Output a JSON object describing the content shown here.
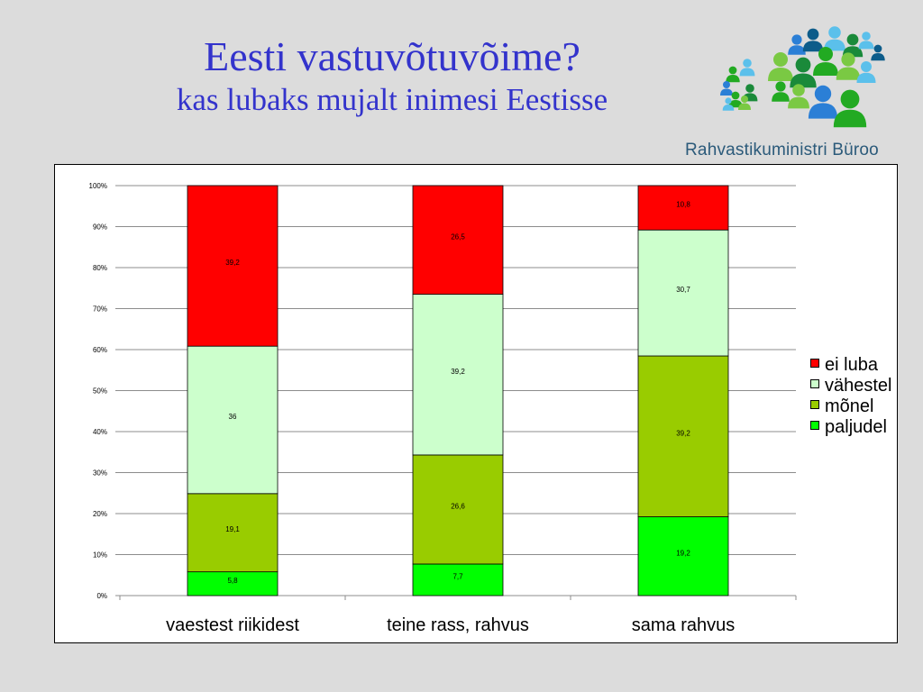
{
  "title": {
    "main": "Eesti vastuvõtuvõime?",
    "sub": "kas lubaks mujalt inimesi Eestisse"
  },
  "logo": {
    "text": "Rahvastikuministri Büroo",
    "colors": [
      "#22aa22",
      "#7ac943",
      "#1a8a3a",
      "#2b7fd6",
      "#5bc0eb",
      "#0d5c8a"
    ]
  },
  "colors": {
    "background": "#dcdcdc",
    "title": "#3333cc",
    "paljudel": "#00ff00",
    "monel": "#99cc00",
    "vahestel": "#ccffcc",
    "ei_luba": "#ff0000"
  },
  "chart_data": {
    "type": "bar",
    "stacked": "percent",
    "categories": [
      "vaestest riikidest",
      "teine rass, rahvus",
      "sama rahvus"
    ],
    "series": [
      {
        "name": "paljudel",
        "color": "#00ff00",
        "values": [
          5.8,
          7.7,
          19.2
        ],
        "labels": [
          "5,8",
          "7,7",
          "19,2"
        ]
      },
      {
        "name": "mõnel",
        "color": "#99cc00",
        "values": [
          19.1,
          26.6,
          39.2
        ],
        "labels": [
          "19,1",
          "26,6",
          "39,2"
        ]
      },
      {
        "name": "vähestel",
        "color": "#ccffcc",
        "values": [
          36,
          39.2,
          30.7
        ],
        "labels": [
          "36",
          "39,2",
          "30,7"
        ]
      },
      {
        "name": "ei luba",
        "color": "#ff0000",
        "values": [
          39.2,
          26.5,
          10.8
        ],
        "labels": [
          "39,2",
          "26,5",
          "10,8"
        ]
      }
    ],
    "y_ticks": [
      "0%",
      "10%",
      "20%",
      "30%",
      "40%",
      "50%",
      "60%",
      "70%",
      "80%",
      "90%",
      "100%"
    ],
    "ylim": [
      0,
      100
    ],
    "grid": true,
    "legend_order": [
      "ei luba",
      "vähestel",
      "mõnel",
      "paljudel"
    ],
    "legend_position": "right"
  }
}
